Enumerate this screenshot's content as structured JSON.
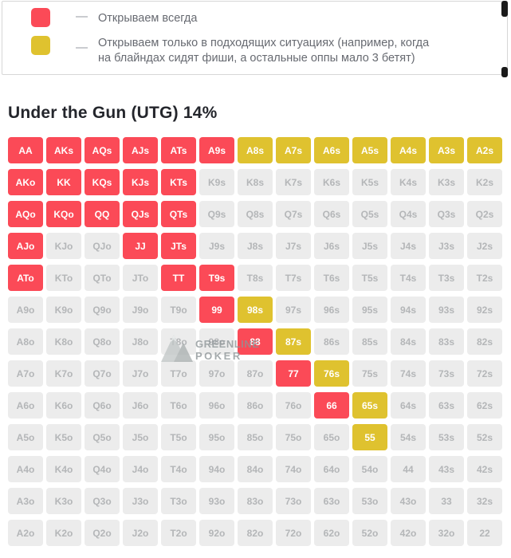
{
  "legend": {
    "dash": "—",
    "items": [
      {
        "label": "Открываем всегда",
        "color": "#fb4a57"
      },
      {
        "label": "Открываем только в подходящих ситуациях (например, когда\nна блайндах сидят фиши, а остальные оппы мало 3 бетят)",
        "color": "#dfc22f"
      }
    ]
  },
  "title": "Under the Gun (UTG) 14%",
  "watermark": {
    "line1": "GREENLINE",
    "line2": "POKER"
  },
  "colors": {
    "always": "#fb4a57",
    "situational": "#dfc22f",
    "fold_bg": "#ececec",
    "fold_text": "#b4b6b8",
    "cell_text": "#ffffff"
  },
  "grid": {
    "labels": [
      [
        "AA",
        "AKs",
        "AQs",
        "AJs",
        "ATs",
        "A9s",
        "A8s",
        "A7s",
        "A6s",
        "A5s",
        "A4s",
        "A3s",
        "A2s"
      ],
      [
        "AKo",
        "KK",
        "KQs",
        "KJs",
        "KTs",
        "K9s",
        "K8s",
        "K7s",
        "K6s",
        "K5s",
        "K4s",
        "K3s",
        "K2s"
      ],
      [
        "AQo",
        "KQo",
        "QQ",
        "QJs",
        "QTs",
        "Q9s",
        "Q8s",
        "Q7s",
        "Q6s",
        "Q5s",
        "Q4s",
        "Q3s",
        "Q2s"
      ],
      [
        "AJo",
        "KJo",
        "QJo",
        "JJ",
        "JTs",
        "J9s",
        "J8s",
        "J7s",
        "J6s",
        "J5s",
        "J4s",
        "J3s",
        "J2s"
      ],
      [
        "ATo",
        "KTo",
        "QTo",
        "JTo",
        "TT",
        "T9s",
        "T8s",
        "T7s",
        "T6s",
        "T5s",
        "T4s",
        "T3s",
        "T2s"
      ],
      [
        "A9o",
        "K9o",
        "Q9o",
        "J9o",
        "T9o",
        "99",
        "98s",
        "97s",
        "96s",
        "95s",
        "94s",
        "93s",
        "92s"
      ],
      [
        "A8o",
        "K8o",
        "Q8o",
        "J8o",
        "T8o",
        "98o",
        "88",
        "87s",
        "86s",
        "85s",
        "84s",
        "83s",
        "82s"
      ],
      [
        "A7o",
        "K7o",
        "Q7o",
        "J7o",
        "T7o",
        "97o",
        "87o",
        "77",
        "76s",
        "75s",
        "74s",
        "73s",
        "72s"
      ],
      [
        "A6o",
        "K6o",
        "Q6o",
        "J6o",
        "T6o",
        "96o",
        "86o",
        "76o",
        "66",
        "65s",
        "64s",
        "63s",
        "62s"
      ],
      [
        "A5o",
        "K5o",
        "Q5o",
        "J5o",
        "T5o",
        "95o",
        "85o",
        "75o",
        "65o",
        "55",
        "54s",
        "53s",
        "52s"
      ],
      [
        "A4o",
        "K4o",
        "Q4o",
        "J4o",
        "T4o",
        "94o",
        "84o",
        "74o",
        "64o",
        "54o",
        "44",
        "43s",
        "42s"
      ],
      [
        "A3o",
        "K3o",
        "Q3o",
        "J3o",
        "T3o",
        "93o",
        "83o",
        "73o",
        "63o",
        "53o",
        "43o",
        "33",
        "32s"
      ],
      [
        "A2o",
        "K2o",
        "Q2o",
        "J2o",
        "T2o",
        "92o",
        "82o",
        "72o",
        "62o",
        "52o",
        "42o",
        "32o",
        "22"
      ]
    ],
    "states": [
      "rrrrrryyyyyyy",
      "rrrrrnnnnnnnn",
      "rrrrrnnnnnnnn",
      "rnnrrnnnnnnnn",
      "rnnnrrnnnnnnn",
      "nnnnnrynnnnnn",
      "nnnnnnrynnnnn",
      "nnnnnnnrynnnn",
      "nnnnnnnnrynnn",
      "nnnnnnnnnynnn",
      "nnnnnnnnnnnnn",
      "nnnnnnnnnnnnn",
      "nnnnnnnnnnnnn"
    ]
  }
}
